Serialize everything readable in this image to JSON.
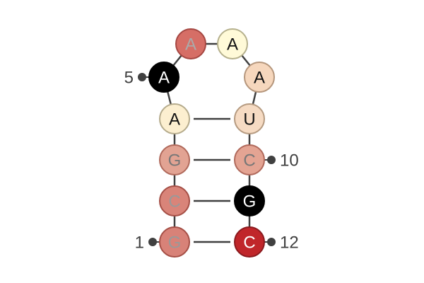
{
  "structure": {
    "nucleotides": [
      {
        "index": 1,
        "base": "G",
        "fill": "#d88278",
        "stroke": "#a54f46",
        "text_color": "#999999"
      },
      {
        "index": 2,
        "base": "C",
        "fill": "#d98479",
        "stroke": "#a54f46",
        "text_color": "#999999"
      },
      {
        "index": 3,
        "base": "G",
        "fill": "#e2a393",
        "stroke": "#b0695b",
        "text_color": "#777777"
      },
      {
        "index": 4,
        "base": "A",
        "fill": "#fcefd0",
        "stroke": "#b5ab8c",
        "text_color": "#111111"
      },
      {
        "index": 5,
        "base": "A",
        "fill": "#000000",
        "stroke": "#000000",
        "text_color": "#ffffff"
      },
      {
        "index": 6,
        "base": "A",
        "fill": "#d66e66",
        "stroke": "#a54742",
        "text_color": "#aaaaaa"
      },
      {
        "index": 7,
        "base": "A",
        "fill": "#fffad8",
        "stroke": "#b5b08c",
        "text_color": "#111111"
      },
      {
        "index": 8,
        "base": "A",
        "fill": "#f6d7bd",
        "stroke": "#b5967c",
        "text_color": "#111111"
      },
      {
        "index": 9,
        "base": "U",
        "fill": "#f6dbc3",
        "stroke": "#b59a80",
        "text_color": "#111111"
      },
      {
        "index": 10,
        "base": "C",
        "fill": "#e4a493",
        "stroke": "#b0695b",
        "text_color": "#777777"
      },
      {
        "index": 11,
        "base": "G",
        "fill": "#000000",
        "stroke": "#000000",
        "text_color": "#ffffff"
      },
      {
        "index": 12,
        "base": "C",
        "fill": "#c0262a",
        "stroke": "#8a1a1e",
        "text_color": "#ffffff"
      }
    ],
    "pairs": [
      [
        1,
        12
      ],
      [
        2,
        11
      ],
      [
        3,
        10
      ],
      [
        4,
        9
      ]
    ],
    "position_labels": [
      {
        "text": "1",
        "nucleotide": 1,
        "side": "left"
      },
      {
        "text": "5",
        "nucleotide": 5,
        "side": "left"
      },
      {
        "text": "10",
        "nucleotide": 10,
        "side": "right"
      },
      {
        "text": "12",
        "nucleotide": 12,
        "side": "right"
      }
    ],
    "backbone_color": "#404040"
  }
}
